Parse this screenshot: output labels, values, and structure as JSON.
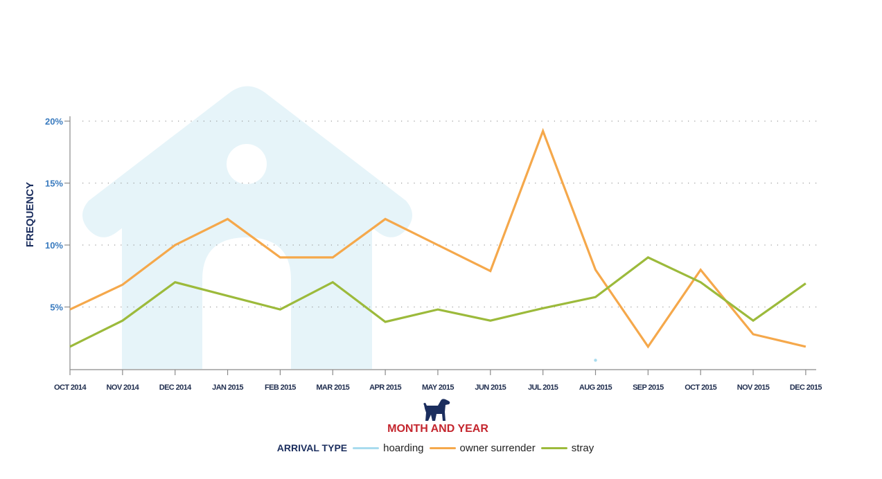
{
  "chart_data": {
    "type": "line",
    "xlabel": "MONTH AND YEAR",
    "ylabel": "FREQUENCY",
    "categories": [
      "OCT 2014",
      "NOV 2014",
      "DEC 2014",
      "JAN 2015",
      "FEB 2015",
      "MAR 2015",
      "APR 2015",
      "MAY 2015",
      "JUN 2015",
      "JUL 2015",
      "AUG 2015",
      "SEP 2015",
      "OCT 2015",
      "NOV 2015",
      "DEC 2015"
    ],
    "y_ticks": [
      "5%",
      "10%",
      "15%",
      "20%"
    ],
    "y_tick_values": [
      5,
      10,
      15,
      20
    ],
    "ylim": [
      0,
      20
    ],
    "grid": "horizontal dotted",
    "legend_title": "ARRIVAL TYPE",
    "legend_position": "bottom",
    "series": [
      {
        "name": "hoarding",
        "color": "#a8dbee",
        "values": [
          null,
          null,
          null,
          null,
          null,
          null,
          null,
          null,
          null,
          null,
          0.7,
          null,
          null,
          null,
          null
        ]
      },
      {
        "name": "owner surrender",
        "color": "#f5a84b",
        "values": [
          4.8,
          6.8,
          10.0,
          12.1,
          9.0,
          9.0,
          12.1,
          10.0,
          7.9,
          19.2,
          8.0,
          1.8,
          8.0,
          2.8,
          1.8
        ]
      },
      {
        "name": "stray",
        "color": "#9cba3b",
        "values": [
          1.8,
          3.9,
          7.0,
          5.9,
          4.8,
          7.0,
          3.8,
          4.8,
          3.9,
          4.9,
          5.8,
          9.0,
          7.0,
          3.9,
          6.9
        ]
      }
    ],
    "colors": {
      "axis": "#8a8a8a",
      "y_tick_text": "#3a7bbf",
      "xlabel_text": "#c4262e",
      "house": "#e6f4f9",
      "dog_icon": "#1b2e5e"
    }
  }
}
